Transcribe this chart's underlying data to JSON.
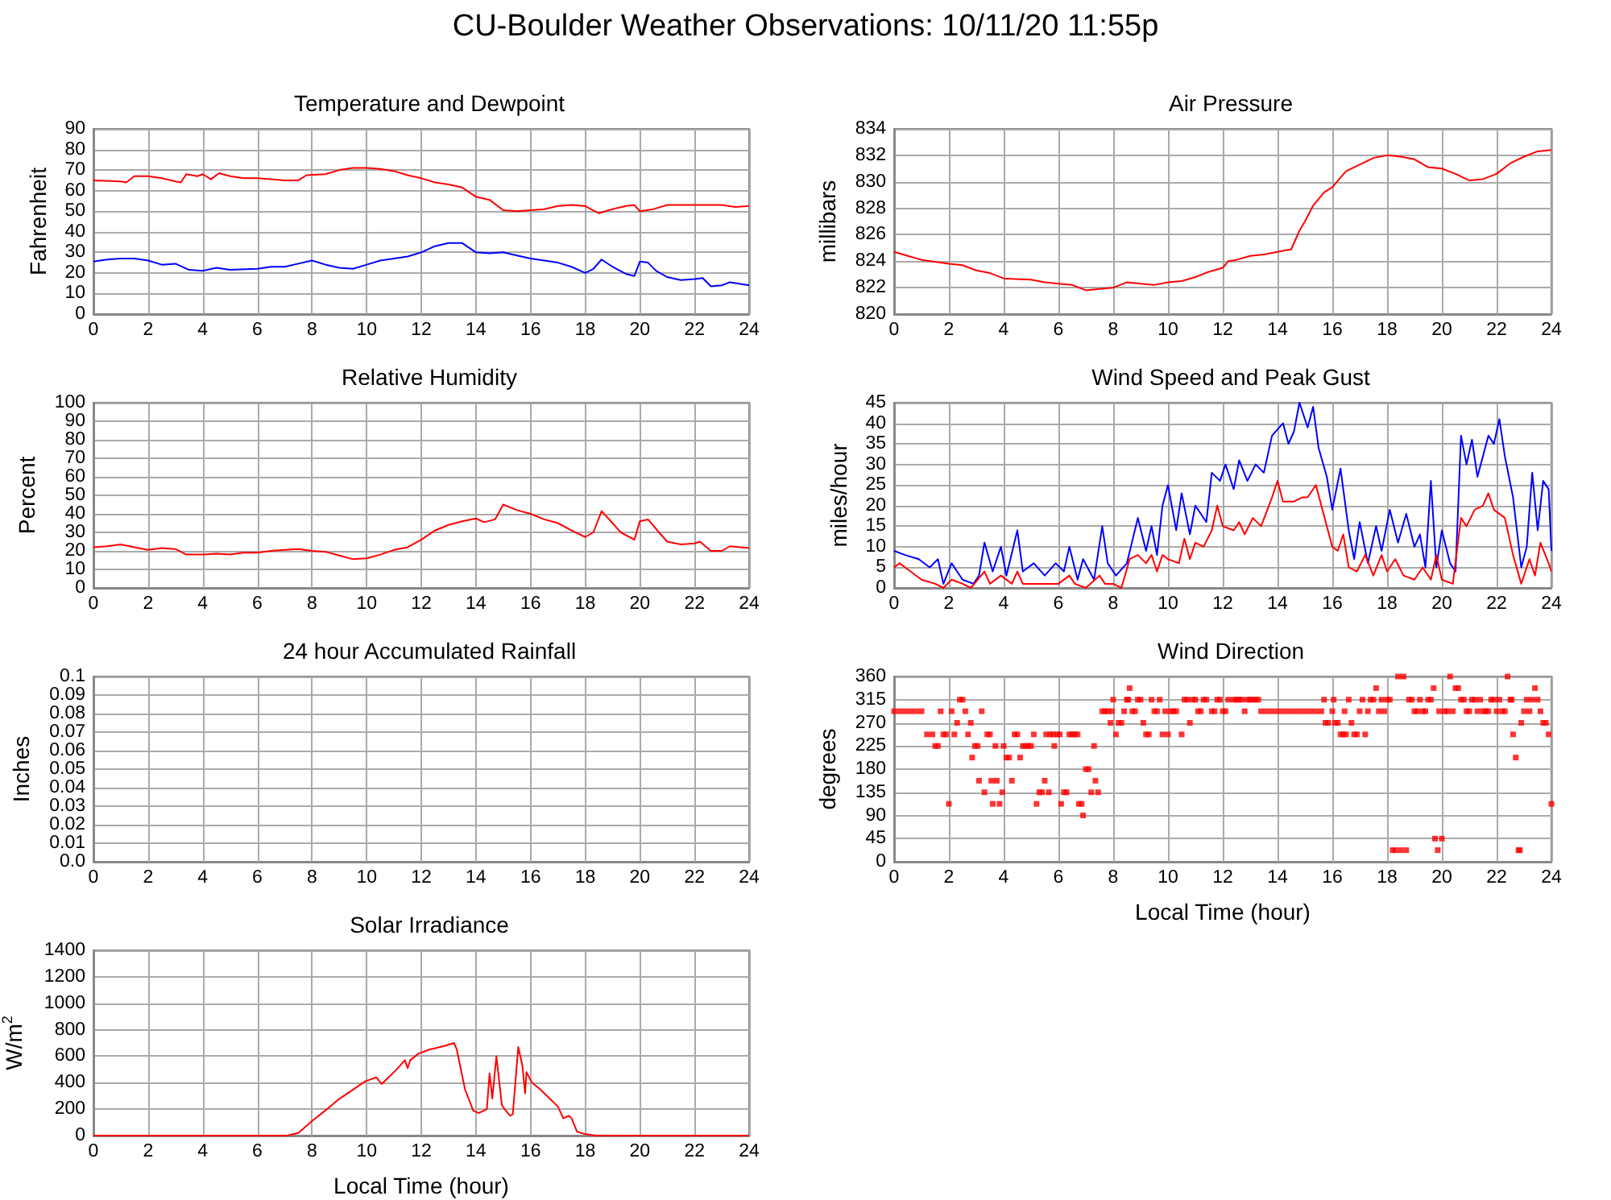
{
  "chart_data": [
    {
      "type": "other",
      "title": "CU-Boulder Weather Observations: 10/11/20 11:55p"
    },
    {
      "type": "line",
      "title": "Temperature and Dewpoint",
      "ylabel": "Fahrenheit",
      "xlim": [
        0,
        24
      ],
      "xticks": [
        0,
        2,
        4,
        6,
        8,
        10,
        12,
        14,
        16,
        18,
        20,
        22,
        24
      ],
      "ylim": [
        0,
        90
      ],
      "yticks": [
        0,
        10,
        20,
        30,
        40,
        50,
        60,
        70,
        80,
        90
      ],
      "grid": true,
      "series": [
        {
          "color": "#ff0000",
          "x": [
            0,
            1,
            1.2,
            1.5,
            2,
            2.5,
            3,
            3.2,
            3.4,
            3.8,
            4,
            4.3,
            4.6,
            5,
            5.5,
            6,
            6.5,
            7,
            7.5,
            7.8,
            8.5,
            9,
            9.5,
            10,
            10.5,
            11,
            11.5,
            12,
            12.5,
            13,
            13.5,
            14,
            14.5,
            15,
            15.5,
            16,
            16.5,
            17,
            17.5,
            18,
            18.5,
            19,
            19.5,
            19.8,
            20,
            20.5,
            21,
            22,
            23,
            23.5,
            24
          ],
          "values": [
            65,
            64.5,
            64,
            67,
            67,
            66,
            64.5,
            64,
            68,
            67,
            68,
            65.5,
            68.5,
            67,
            66,
            66,
            65.5,
            65,
            65,
            67.5,
            68,
            70,
            71,
            71,
            70.5,
            69.5,
            67.5,
            66,
            64,
            63,
            61.5,
            57,
            55.5,
            50.5,
            50,
            50.5,
            51,
            52.5,
            53,
            52.5,
            49,
            51,
            52.5,
            53,
            50,
            51,
            53,
            53,
            53,
            52,
            52.5
          ]
        },
        {
          "color": "#0000ff",
          "x": [
            0,
            0.5,
            1,
            1.5,
            2,
            2.5,
            3,
            3.5,
            4,
            4.5,
            5,
            6,
            6.5,
            7,
            7.5,
            8,
            8.5,
            9,
            9.5,
            10,
            10.5,
            11,
            11.5,
            12,
            12.5,
            13,
            13.5,
            14,
            14.5,
            15,
            15.5,
            16,
            16.5,
            17,
            17.5,
            18,
            18.3,
            18.6,
            19,
            19.5,
            19.8,
            20,
            20.3,
            20.6,
            21,
            21.5,
            22,
            22.3,
            22.6,
            23,
            23.3,
            24
          ],
          "values": [
            25.5,
            26.5,
            27,
            27,
            26,
            24,
            24.5,
            21.5,
            21,
            22.5,
            21.5,
            22,
            23,
            23,
            24.5,
            26,
            24,
            22.5,
            22,
            24,
            26,
            27,
            28,
            30,
            33,
            34.5,
            34.5,
            30,
            29.5,
            30,
            28.5,
            27,
            26,
            25,
            23,
            20,
            22,
            26.5,
            23,
            19.5,
            18.5,
            25.5,
            25,
            21,
            18,
            16.5,
            17,
            17.5,
            13.5,
            14,
            15.5,
            14
          ]
        }
      ]
    },
    {
      "type": "line",
      "title": "Air Pressure",
      "ylabel": "millibars",
      "xlim": [
        0,
        24
      ],
      "xticks": [
        0,
        2,
        4,
        6,
        8,
        10,
        12,
        14,
        16,
        18,
        20,
        22,
        24
      ],
      "ylim": [
        820,
        834
      ],
      "yticks": [
        820,
        822,
        824,
        826,
        828,
        830,
        832,
        834
      ],
      "grid": true,
      "series": [
        {
          "color": "#ff0000",
          "x": [
            0,
            0.5,
            1,
            2,
            2.5,
            3,
            3.5,
            4,
            5,
            5.5,
            6,
            6.5,
            7,
            7.5,
            8,
            8.5,
            9,
            9.5,
            10,
            10.5,
            11,
            11.5,
            12,
            12.2,
            12.5,
            13,
            13.5,
            14,
            14.5,
            14.8,
            15,
            15.3,
            15.7,
            16,
            16.5,
            17,
            17.5,
            18,
            18.5,
            19,
            19.5,
            20,
            20.5,
            21,
            21.5,
            22,
            22.5,
            23,
            23.5,
            24
          ],
          "values": [
            824.7,
            824.4,
            824.1,
            823.8,
            823.7,
            823.3,
            823.1,
            822.7,
            822.6,
            822.4,
            822.3,
            822.2,
            821.8,
            821.9,
            822,
            822.4,
            822.3,
            822.2,
            822.4,
            822.5,
            822.8,
            823.2,
            823.5,
            824,
            824.1,
            824.4,
            824.5,
            824.7,
            824.9,
            826.3,
            827,
            828.2,
            829.2,
            829.6,
            830.8,
            831.3,
            831.8,
            832,
            831.9,
            831.7,
            831.1,
            831,
            830.6,
            830.1,
            830.2,
            830.6,
            831.4,
            831.9,
            832.3,
            832.4
          ]
        }
      ]
    },
    {
      "type": "line",
      "title": "Relative Humidity",
      "ylabel": "Percent",
      "xlim": [
        0,
        24
      ],
      "xticks": [
        0,
        2,
        4,
        6,
        8,
        10,
        12,
        14,
        16,
        18,
        20,
        22,
        24
      ],
      "ylim": [
        0,
        100
      ],
      "yticks": [
        0,
        10,
        20,
        30,
        40,
        50,
        60,
        70,
        80,
        90,
        100
      ],
      "grid": true,
      "series": [
        {
          "color": "#ff0000",
          "x": [
            0,
            0.5,
            1,
            1.5,
            2,
            2.5,
            3,
            3.4,
            4,
            4.5,
            5,
            5.5,
            6,
            6.5,
            7,
            7.5,
            8,
            8.5,
            9,
            9.5,
            10,
            10.5,
            11,
            11.5,
            12,
            12.5,
            13,
            13.5,
            14,
            14.3,
            14.7,
            15,
            15.5,
            16,
            16.5,
            17,
            17.5,
            18,
            18.3,
            18.6,
            19,
            19.3,
            19.8,
            20,
            20.3,
            20.7,
            21,
            21.5,
            22,
            22.2,
            22.6,
            23,
            23.3,
            24
          ],
          "values": [
            22,
            22.5,
            23.5,
            22,
            20.5,
            21.5,
            21,
            18,
            18,
            18.5,
            18,
            19,
            19,
            20,
            20.5,
            21,
            20,
            19.5,
            17.5,
            15.5,
            16,
            18,
            20.5,
            22,
            26,
            31,
            34,
            36,
            37.5,
            35.5,
            37,
            45,
            42,
            40,
            37,
            35,
            31,
            27.5,
            30,
            41.5,
            35,
            30,
            26,
            36,
            37,
            30,
            25,
            23.5,
            24,
            25,
            20,
            20,
            22.5,
            21.5
          ]
        }
      ]
    },
    {
      "type": "line",
      "title": "Wind Speed and Peak Gust",
      "ylabel": "miles/hour",
      "xlim": [
        0,
        24
      ],
      "xticks": [
        0,
        2,
        4,
        6,
        8,
        10,
        12,
        14,
        16,
        18,
        20,
        22,
        24
      ],
      "ylim": [
        0,
        45
      ],
      "yticks": [
        0,
        5,
        10,
        15,
        20,
        25,
        30,
        35,
        40,
        45
      ],
      "grid": true,
      "series": [
        {
          "color": "#0000ff",
          "x": [
            0,
            0.4,
            0.9,
            1.3,
            1.6,
            1.8,
            2.1,
            2.5,
            2.9,
            3.1,
            3.3,
            3.6,
            3.9,
            4.1,
            4.5,
            4.7,
            5.1,
            5.5,
            5.9,
            6.2,
            6.4,
            6.7,
            6.9,
            7.3,
            7.6,
            7.8,
            8.1,
            8.5,
            8.9,
            9.2,
            9.4,
            9.6,
            9.8,
            10,
            10.3,
            10.5,
            10.8,
            11,
            11.4,
            11.6,
            11.9,
            12.1,
            12.4,
            12.6,
            12.9,
            13.2,
            13.5,
            13.8,
            14.2,
            14.4,
            14.6,
            14.8,
            15.1,
            15.3,
            15.5,
            15.8,
            16,
            16.3,
            16.6,
            16.8,
            17,
            17.3,
            17.6,
            17.8,
            18.1,
            18.4,
            18.7,
            19,
            19.2,
            19.4,
            19.6,
            19.8,
            20,
            20.3,
            20.5,
            20.7,
            20.9,
            21.1,
            21.3,
            21.7,
            21.9,
            22.1,
            22.3,
            22.6,
            22.9,
            23.1,
            23.3,
            23.5,
            23.7,
            23.9,
            24
          ],
          "values": [
            9,
            8,
            7,
            5,
            7,
            1,
            6,
            2,
            1,
            3,
            11,
            4,
            10,
            3,
            14,
            4,
            6,
            3,
            6,
            4,
            10,
            2,
            7,
            2,
            15,
            6,
            3,
            6,
            17,
            9,
            15,
            8,
            20,
            25,
            14,
            23,
            13,
            20,
            16,
            28,
            26,
            30,
            24,
            31,
            26,
            30,
            28,
            37,
            40,
            35,
            38,
            45,
            39,
            44,
            34,
            27,
            19,
            29,
            14,
            7,
            16,
            6,
            15,
            9,
            19,
            11,
            18,
            10,
            13,
            5,
            26,
            5,
            14,
            6,
            4,
            37,
            30,
            36,
            27,
            37,
            35,
            41,
            32,
            22,
            5,
            10,
            28,
            14,
            26,
            24,
            9
          ]
        },
        {
          "color": "#ff0000",
          "x": [
            0,
            0.2,
            0.6,
            1,
            1.5,
            1.8,
            2.1,
            2.5,
            2.8,
            3.3,
            3.5,
            3.9,
            4.3,
            4.5,
            4.7,
            5.5,
            6,
            6.4,
            6.6,
            7,
            7.5,
            7.7,
            8,
            8.3,
            8.6,
            8.9,
            9.2,
            9.4,
            9.6,
            9.8,
            10,
            10.4,
            10.6,
            10.8,
            11,
            11.3,
            11.6,
            11.8,
            12,
            12.4,
            12.6,
            12.8,
            13.1,
            13.4,
            13.8,
            14,
            14.2,
            14.6,
            14.9,
            15.1,
            15.4,
            15.6,
            15.8,
            16,
            16.2,
            16.4,
            16.6,
            16.9,
            17.2,
            17.5,
            17.8,
            18,
            18.3,
            18.6,
            19,
            19.3,
            19.6,
            19.8,
            20,
            20.4,
            20.7,
            20.9,
            21.2,
            21.5,
            21.7,
            21.9,
            22.3,
            22.6,
            22.9,
            23.2,
            23.4,
            23.6,
            23.9,
            24
          ],
          "values": [
            5,
            6,
            4,
            2,
            1,
            0,
            2,
            1,
            0,
            4,
            1,
            3,
            1,
            4,
            1,
            1,
            1,
            3,
            1,
            0,
            3,
            1,
            1,
            0,
            7,
            8,
            6,
            8,
            4,
            8,
            7,
            6,
            12,
            7,
            11,
            10,
            14,
            20,
            15,
            14,
            16,
            13,
            17,
            15,
            22,
            26,
            21,
            21,
            22,
            22,
            25,
            20,
            15,
            10,
            9,
            13,
            5,
            4,
            8,
            3,
            8,
            4,
            7,
            3,
            2,
            5,
            2,
            8,
            2,
            1,
            17,
            15,
            19,
            20,
            23,
            19,
            17,
            8,
            1,
            7,
            3,
            11,
            6,
            4
          ]
        }
      ]
    },
    {
      "type": "line",
      "title": "24 hour Accumulated Rainfall",
      "ylabel": "Inches",
      "xlim": [
        0,
        24
      ],
      "xticks": [
        0,
        2,
        4,
        6,
        8,
        10,
        12,
        14,
        16,
        18,
        20,
        22,
        24
      ],
      "ylim": [
        0,
        0.1
      ],
      "yticks": [
        {
          "value": 0,
          "label": "0.0"
        },
        0.01,
        0.02,
        0.03,
        0.04,
        0.05,
        0.06,
        0.07,
        0.08,
        0.09,
        0.1
      ],
      "grid": true
    },
    {
      "type": "scatter",
      "title": "Wind Direction",
      "ylabel": "degrees",
      "xlabel": "Local Time (hour)",
      "xlim": [
        0,
        24
      ],
      "xticks": [
        0,
        2,
        4,
        6,
        8,
        10,
        12,
        14,
        16,
        18,
        20,
        22,
        24
      ],
      "ylim": [
        0,
        360
      ],
      "yticks": [
        0,
        45,
        90,
        135,
        180,
        225,
        270,
        315,
        360
      ],
      "grid": true,
      "marker": "square",
      "series": [
        {
          "color": "#ff0000",
          "x": [
            0,
            0.2,
            0.4,
            0.6,
            0.8,
            1,
            1.2,
            1.4,
            1.5,
            1.6,
            1.7,
            1.8,
            1.9,
            2,
            2.1,
            2.2,
            2.3,
            2.4,
            2.5,
            2.6,
            2.7,
            2.8,
            2.85,
            2.95,
            3.05,
            3.1,
            3.2,
            3.3,
            3.4,
            3.5,
            3.55,
            3.6,
            3.7,
            3.75,
            3.85,
            3.95,
            4,
            4.1,
            4.2,
            4.3,
            4.4,
            4.5,
            4.6,
            4.7,
            4.8,
            4.9,
            5,
            5.1,
            5.2,
            5.3,
            5.4,
            5.5,
            5.55,
            5.65,
            5.7,
            5.8,
            5.85,
            5.95,
            6.05,
            6.1,
            6.2,
            6.3,
            6.4,
            6.5,
            6.6,
            6.7,
            6.75,
            6.85,
            6.9,
            7,
            7.1,
            7.2,
            7.3,
            7.35,
            7.45,
            7.6,
            7.7,
            7.8,
            7.9,
            7.95,
            8,
            8.1,
            8.2,
            8.3,
            8.4,
            8.5,
            8.55,
            8.6,
            8.7,
            8.8,
            8.9,
            9,
            9.1,
            9.2,
            9.3,
            9.4,
            9.5,
            9.6,
            9.7,
            9.8,
            9.9,
            10,
            10.1,
            10.2,
            10.3,
            10.5,
            10.6,
            10.7,
            10.8,
            10.9,
            11,
            11.1,
            11.2,
            11.3,
            11.4,
            11.6,
            11.7,
            11.8,
            11.9,
            12,
            12.1,
            12.2,
            12.4,
            12.5,
            12.6,
            12.7,
            12.8,
            12.9,
            13,
            13.1,
            13.2,
            13.3,
            13.4,
            13.6,
            13.8,
            14,
            14.2,
            14.4,
            14.6,
            14.8,
            15,
            15.2,
            15.4,
            15.6,
            15.7,
            15.75,
            15.85,
            16,
            16.05,
            16.1,
            16.2,
            16.3,
            16.4,
            16.45,
            16.5,
            16.6,
            16.7,
            16.8,
            16.9,
            17,
            17.1,
            17.2,
            17.3,
            17.4,
            17.5,
            17.6,
            17.7,
            17.8,
            17.9,
            18,
            18.1,
            18.2,
            18.3,
            18.4,
            18.5,
            18.6,
            18.7,
            18.8,
            18.9,
            19,
            19.1,
            19.2,
            19.3,
            19.4,
            19.5,
            19.6,
            19.7,
            19.75,
            19.85,
            19.9,
            20,
            20.1,
            20.2,
            20.3,
            20.4,
            20.5,
            20.6,
            20.7,
            20.8,
            20.9,
            21,
            21.1,
            21.2,
            21.3,
            21.4,
            21.5,
            21.6,
            21.7,
            21.8,
            21.9,
            22,
            22.1,
            22.2,
            22.3,
            22.4,
            22.5,
            22.55,
            22.6,
            22.7,
            22.8,
            22.85,
            22.9,
            23,
            23.1,
            23.2,
            23.3,
            23.4,
            23.5,
            23.6,
            23.7,
            23.8,
            23.9,
            24
          ],
          "values": [
            292.5,
            292.5,
            292.5,
            292.5,
            292.5,
            292.5,
            247.5,
            247.5,
            225,
            225,
            292.5,
            247.5,
            247.5,
            112.5,
            292.5,
            247.5,
            270,
            315,
            315,
            292.5,
            247.5,
            270,
            202.5,
            225,
            225,
            157.5,
            292.5,
            135,
            247.5,
            247.5,
            157.5,
            112.5,
            225,
            157.5,
            112.5,
            135,
            225,
            202.5,
            202.5,
            157.5,
            247.5,
            247.5,
            202.5,
            225,
            225,
            225,
            225,
            247.5,
            112.5,
            135,
            135,
            157.5,
            247.5,
            135,
            247.5,
            247.5,
            225,
            247.5,
            247.5,
            112.5,
            135,
            135,
            247.5,
            247.5,
            247.5,
            247.5,
            112.5,
            112.5,
            90,
            180,
            180,
            135,
            225,
            157.5,
            135,
            292.5,
            292.5,
            292.5,
            270,
            292.5,
            315,
            247.5,
            270,
            270,
            292.5,
            315,
            315,
            337.5,
            292.5,
            292.5,
            315,
            315,
            270,
            247.5,
            247.5,
            315,
            292.5,
            292.5,
            315,
            247.5,
            292.5,
            247.5,
            292.5,
            292.5,
            292.5,
            247.5,
            315,
            315,
            270,
            315,
            315,
            292.5,
            292.5,
            315,
            315,
            292.5,
            292.5,
            315,
            315,
            292.5,
            292.5,
            315,
            315,
            315,
            315,
            315,
            292.5,
            315,
            315,
            315,
            315,
            315,
            292.5,
            292.5,
            292.5,
            292.5,
            292.5,
            292.5,
            292.5,
            292.5,
            292.5,
            292.5,
            292.5,
            292.5,
            315,
            270,
            270,
            292.5,
            315,
            270,
            270,
            247.5,
            247.5,
            292.5,
            247.5,
            315,
            270,
            247.5,
            247.5,
            292.5,
            315,
            247.5,
            292.5,
            315,
            315,
            337.5,
            292.5,
            315,
            292.5,
            315,
            315,
            22.5,
            22.5,
            360,
            22.5,
            360,
            22.5,
            315,
            315,
            292.5,
            292.5,
            315,
            292.5,
            292.5,
            315,
            315,
            337.5,
            45,
            22.5,
            292.5,
            45,
            292.5,
            292.5,
            360,
            292.5,
            337.5,
            337.5,
            315,
            315,
            292.5,
            292.5,
            315,
            315,
            292.5,
            315,
            292.5,
            292.5,
            292.5,
            315,
            315,
            292.5,
            315,
            292.5,
            292.5,
            360,
            315,
            315,
            247.5,
            202.5,
            22.5,
            22.5,
            270,
            292.5,
            315,
            292.5,
            315,
            337.5,
            315,
            292.5,
            270,
            270,
            247.5,
            112.5
          ]
        }
      ]
    },
    {
      "type": "line",
      "title": "Solar Irradiance",
      "ylabel": "W/m$^{2}$",
      "xlabel": "Local Time (hour)",
      "xlim": [
        0,
        24
      ],
      "xticks": [
        0,
        2,
        4,
        6,
        8,
        10,
        12,
        14,
        16,
        18,
        20,
        22,
        24
      ],
      "ylim": [
        0,
        1400
      ],
      "yticks": [
        0,
        200,
        400,
        600,
        800,
        1000,
        1200,
        1400
      ],
      "grid": true,
      "series": [
        {
          "color": "#ff0000",
          "x": [
            0,
            7.1,
            7.5,
            8,
            8.55,
            8.95,
            9.45,
            9.95,
            10.35,
            10.55,
            10.8,
            11.1,
            11.4,
            11.5,
            11.6,
            11.9,
            12.3,
            12.9,
            13.2,
            13.3,
            13.6,
            13.9,
            14.1,
            14.4,
            14.5,
            14.6,
            14.75,
            14.95,
            15.05,
            15.25,
            15.35,
            15.55,
            15.7,
            15.8,
            15.85,
            16.05,
            16.35,
            16.7,
            17,
            17.2,
            17.4,
            17.5,
            17.7,
            18,
            18.4,
            24
          ],
          "values": [
            0,
            0,
            20,
            110,
            200,
            270,
            340,
            410,
            440,
            390,
            440,
            500,
            570,
            510,
            570,
            620,
            650,
            680,
            700,
            650,
            350,
            190,
            170,
            200,
            470,
            280,
            600,
            230,
            200,
            150,
            160,
            670,
            530,
            320,
            480,
            400,
            350,
            280,
            220,
            130,
            150,
            130,
            30,
            10,
            0,
            0
          ]
        }
      ]
    }
  ]
}
